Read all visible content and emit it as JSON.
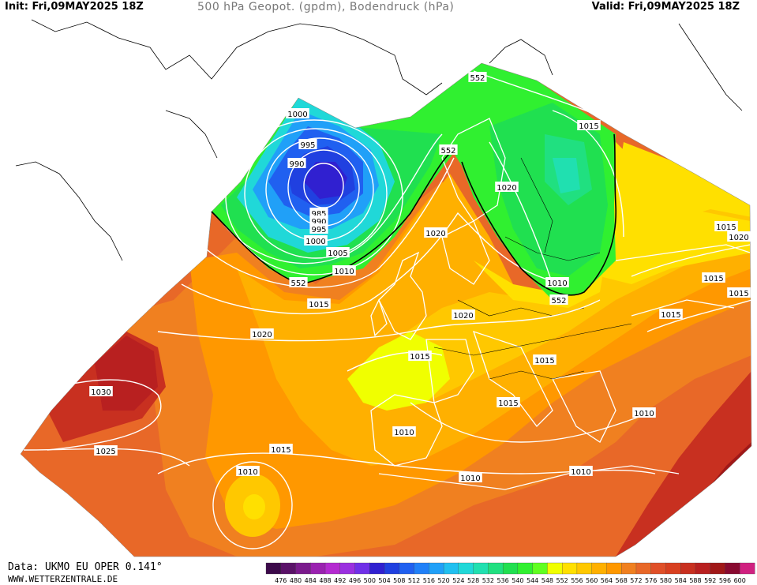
{
  "header": {
    "init": "Init: Fri,09MAY2025 18Z",
    "title": "500 hPa Geopot. (gpdm), Bodendruck (hPa)",
    "valid": "Valid: Fri,09MAY2025 18Z"
  },
  "footer": {
    "data": "Data: UKMO EU OPER 0.141°",
    "site": "WWW.WETTERZENTRALE.DE"
  },
  "legend": {
    "levels": [
      "476",
      "480",
      "484",
      "488",
      "492",
      "496",
      "500",
      "504",
      "508",
      "512",
      "516",
      "520",
      "524",
      "528",
      "532",
      "536",
      "540",
      "544",
      "548",
      "552",
      "556",
      "560",
      "564",
      "568",
      "572",
      "576",
      "580",
      "584",
      "588",
      "592",
      "596",
      "600"
    ],
    "colors": [
      "#3c0a4a",
      "#5a1268",
      "#7a1a8c",
      "#9a22b0",
      "#b42ad0",
      "#9a30e0",
      "#7030e8",
      "#3020d0",
      "#2040e0",
      "#2060f0",
      "#2080f8",
      "#20a0f8",
      "#20c0f0",
      "#20d8d8",
      "#20e0b0",
      "#20e080",
      "#20e050",
      "#30f030",
      "#60ff20",
      "#f0ff00",
      "#ffe000",
      "#ffc800",
      "#ffb000",
      "#ff9800",
      "#f08020",
      "#e86828",
      "#e05028",
      "#d84020",
      "#c83020",
      "#b82020",
      "#a01818",
      "#880a30",
      "#d02080"
    ]
  },
  "map": {
    "pressure_labels": [
      {
        "text": "1000"
      },
      {
        "text": "995"
      },
      {
        "text": "990"
      },
      {
        "text": "985"
      },
      {
        "text": "990"
      },
      {
        "text": "995"
      },
      {
        "text": "1000"
      },
      {
        "text": "1005"
      },
      {
        "text": "1010"
      },
      {
        "text": "1015"
      },
      {
        "text": "1020"
      },
      {
        "text": "1030"
      },
      {
        "text": "1025"
      },
      {
        "text": "1015"
      },
      {
        "text": "1010"
      },
      {
        "text": "1020"
      },
      {
        "text": "1020"
      },
      {
        "text": "1015"
      },
      {
        "text": "1010"
      },
      {
        "text": "1015"
      },
      {
        "text": "1010"
      },
      {
        "text": "1010"
      },
      {
        "text": "1010"
      },
      {
        "text": "1015"
      },
      {
        "text": "1015"
      },
      {
        "text": "1015"
      },
      {
        "text": "1015"
      },
      {
        "text": "1010"
      },
      {
        "text": "1020"
      },
      {
        "text": "1020"
      },
      {
        "text": "1015"
      },
      {
        "text": "1015"
      }
    ],
    "geopot_labels": [
      {
        "text": "552"
      },
      {
        "text": "552"
      },
      {
        "text": "552"
      },
      {
        "text": "552"
      }
    ]
  }
}
